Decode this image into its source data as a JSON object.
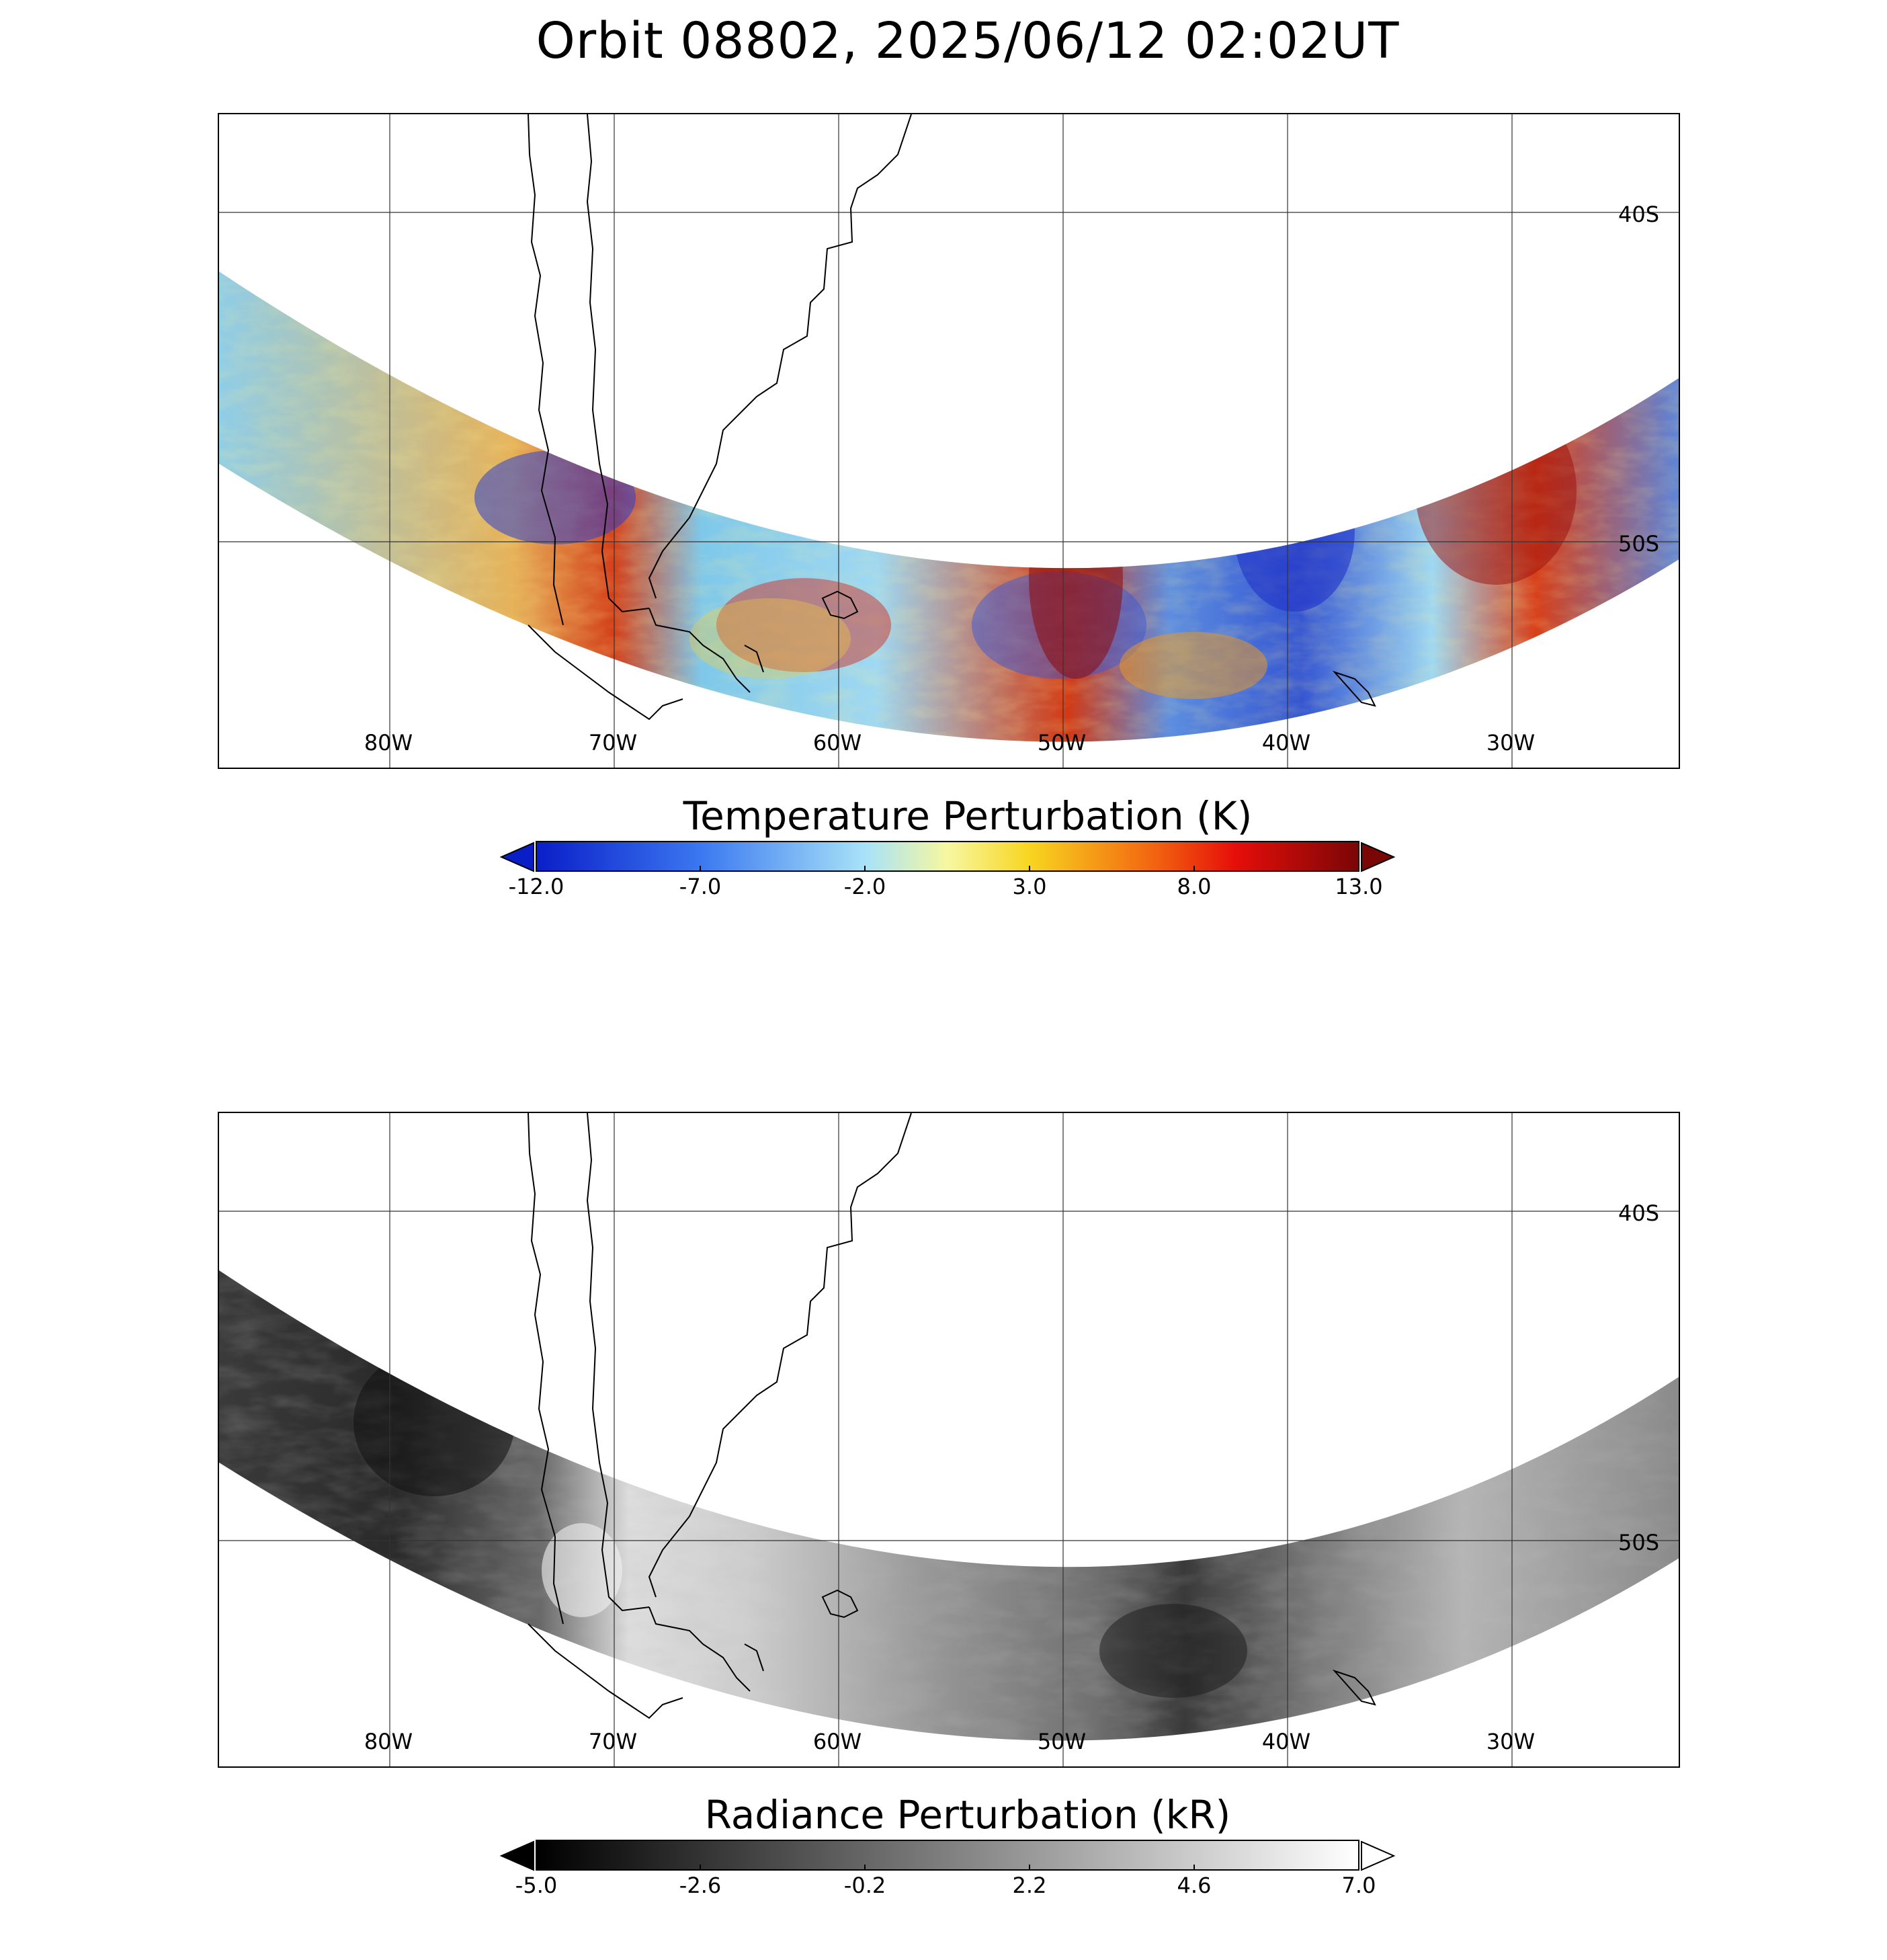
{
  "title": "Orbit 08802, 2025/06/12 02:02UT",
  "map": {
    "lon_labels": [
      "80W",
      "70W",
      "60W",
      "50W",
      "40W",
      "30W"
    ],
    "lat_labels": [
      "40S",
      "50S"
    ]
  },
  "temperature_panel": {
    "colorbar_title": "Temperature Perturbation (K)",
    "colorbar_ticks": [
      "-12.0",
      "-7.0",
      "-2.0",
      "3.0",
      "8.0",
      "13.0"
    ],
    "colors": {
      "deep_blue": "#1f2fd6",
      "light_blue": "#9fd8f2",
      "yellow": "#f8e340",
      "orange": "#f28a12",
      "red": "#e61510",
      "dark_red": "#8c0a0a"
    }
  },
  "radiance_panel": {
    "colorbar_title": "Radiance Perturbation (kR)",
    "colorbar_ticks": [
      "-5.0",
      "-2.6",
      "-0.2",
      "2.2",
      "4.6",
      "7.0"
    ],
    "colors": {
      "black": "#000000",
      "white": "#ffffff"
    }
  }
}
